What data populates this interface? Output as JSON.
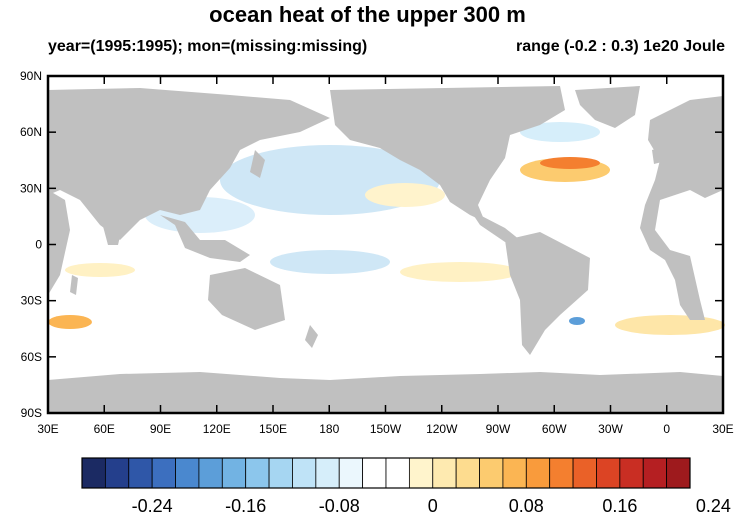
{
  "title": "ocean heat of the upper 300 m",
  "subtitle_left": "year=(1995:1995); mon=(missing:missing)",
  "subtitle_right": "range (-0.2 : 0.3) 1e20 Joule",
  "lat_labels": [
    "90N",
    "60N",
    "30N",
    "0",
    "30S",
    "60S",
    "90S"
  ],
  "lon_labels": [
    "30E",
    "60E",
    "90E",
    "120E",
    "150E",
    "180",
    "150W",
    "120W",
    "90W",
    "60W",
    "30W",
    "0",
    "30E"
  ],
  "colorbar": {
    "colors": [
      "#1b2a63",
      "#243f8c",
      "#2f57a8",
      "#3c6fbf",
      "#4a88cf",
      "#5c9ed9",
      "#72b3e3",
      "#8cc6ec",
      "#a6d6f2",
      "#bfe3f7",
      "#d6eefa",
      "#ebf7fd",
      "#ffffff",
      "#ffffff",
      "#fff4cc",
      "#feeab0",
      "#fddc8f",
      "#fccb6f",
      "#fbb553",
      "#f99b3c",
      "#f47f2f",
      "#ea6128",
      "#dc4424",
      "#c92e23",
      "#b51f22",
      "#9e1a1d"
    ],
    "tick_labels": [
      "-0.24",
      "-0.16",
      "-0.08",
      "0",
      "0.08",
      "0.16",
      "0.24"
    ]
  },
  "colors": {
    "land": "#c0c0c0",
    "ocean_background": "#ffffff"
  }
}
